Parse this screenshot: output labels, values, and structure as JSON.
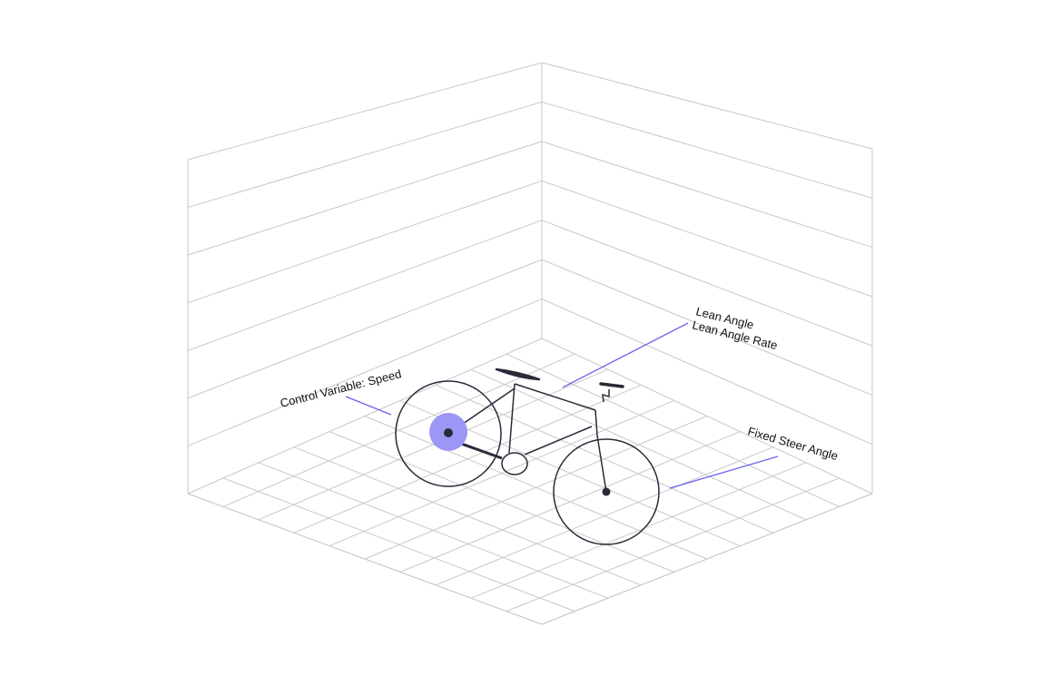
{
  "diagram": {
    "labels": {
      "control_variable": "Control Variable: Speed",
      "lean_angle": "Lean Angle",
      "lean_angle_rate": "Lean Angle Rate",
      "fixed_steer": "Fixed Steer Angle"
    },
    "colors": {
      "accent": "#6a64f0",
      "hub_highlight": "#9b98f5",
      "grid": "#c8c8c8",
      "bike_stroke": "#2a2a3a"
    }
  }
}
